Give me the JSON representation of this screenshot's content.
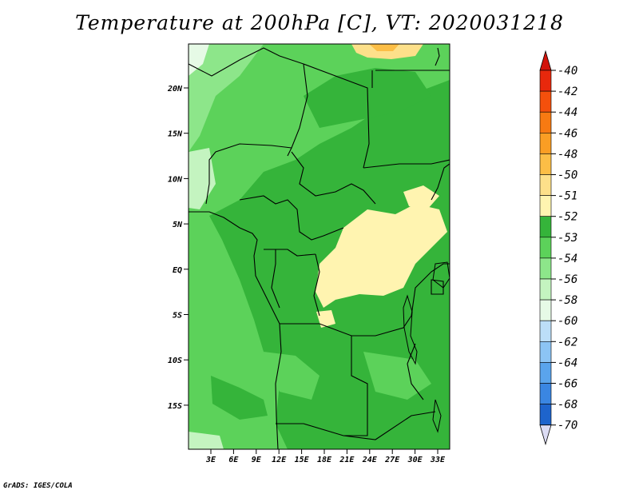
{
  "title": "Temperature at 200hPa [C], VT: 2020031218",
  "credit": "GrADS: IGES/COLA",
  "map": {
    "region": "Central Africa",
    "lat_labels": [
      "20N",
      "15N",
      "10N",
      "5N",
      "EQ",
      "5S",
      "10S",
      "15S"
    ],
    "lon_labels": [
      "3E",
      "6E",
      "9E",
      "12E",
      "15E",
      "18E",
      "21E",
      "24E",
      "27E",
      "30E",
      "33E"
    ]
  },
  "colorbar": {
    "levels": [
      "-40",
      "-42",
      "-44",
      "-46",
      "-48",
      "-50",
      "-51",
      "-52",
      "-53",
      "-54",
      "-56",
      "-58",
      "-60",
      "-62",
      "-64",
      "-66",
      "-68",
      "-70"
    ],
    "colors": [
      "#e8280c",
      "#f4500c",
      "#f77a12",
      "#fa9e24",
      "#fcbe46",
      "#fde08a",
      "#fff4b0",
      "#35b43a",
      "#5cd25a",
      "#8de68a",
      "#c4f4c0",
      "#e6fae6",
      "#bcdef8",
      "#8cc4f4",
      "#5aa4ec",
      "#3a86e2",
      "#1e64cc",
      "#0e42a4",
      "#082080"
    ],
    "top_color": "#d2140c",
    "bottom_color": "#dcdcf4"
  }
}
